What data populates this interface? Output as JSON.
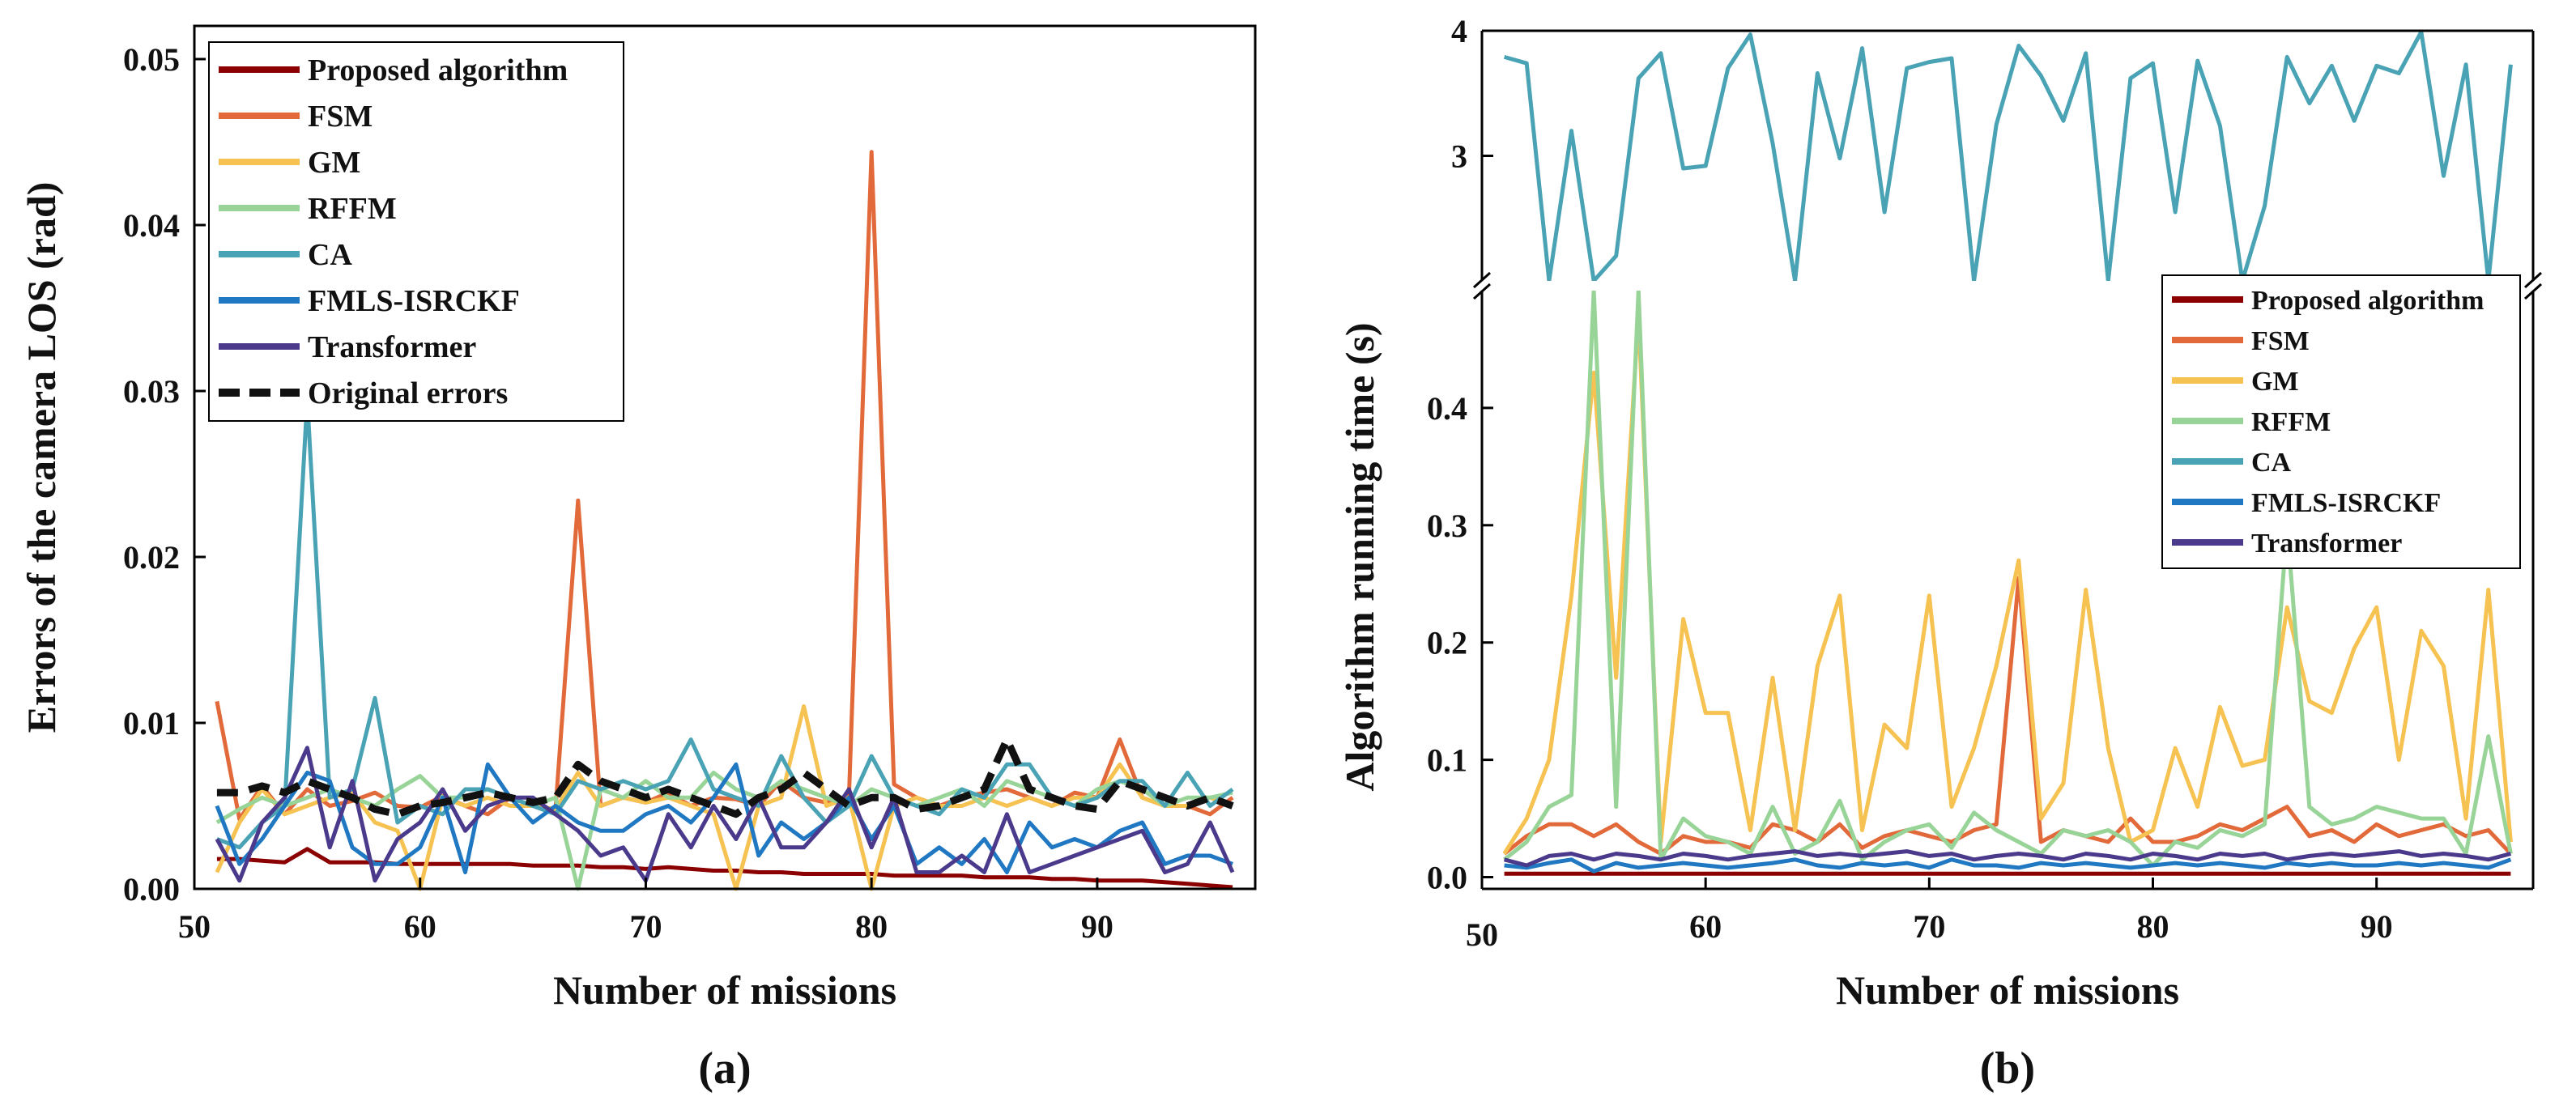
{
  "chart_data": [
    {
      "panel_label": "(a)",
      "type": "line",
      "xlabel": "Number of missions",
      "ylabel": "Errors of the camera LOS (rad)",
      "xlim": [
        50,
        97
      ],
      "ylim": [
        0,
        0.052
      ],
      "xticks": [
        50,
        60,
        70,
        80,
        90
      ],
      "yticks": [
        0.0,
        0.01,
        0.02,
        0.03,
        0.04,
        0.05
      ],
      "ytick_labels": [
        "0.00",
        "0.01",
        "0.02",
        "0.03",
        "0.04",
        "0.05"
      ],
      "x": [
        51,
        52,
        53,
        54,
        55,
        56,
        57,
        58,
        59,
        60,
        61,
        62,
        63,
        64,
        65,
        66,
        67,
        68,
        69,
        70,
        71,
        72,
        73,
        74,
        75,
        76,
        77,
        78,
        79,
        80,
        81,
        82,
        83,
        84,
        85,
        86,
        87,
        88,
        89,
        90,
        91,
        92,
        93,
        94,
        95,
        96
      ],
      "series": [
        {
          "name": "Proposed algorithm",
          "color": "#8b0000",
          "dash": false,
          "values": [
            0.0018,
            0.0018,
            0.0017,
            0.0016,
            0.0024,
            0.0016,
            0.0016,
            0.0016,
            0.0015,
            0.0015,
            0.0015,
            0.0015,
            0.0015,
            0.0015,
            0.0014,
            0.0014,
            0.0014,
            0.0013,
            0.0013,
            0.0012,
            0.0013,
            0.0012,
            0.0011,
            0.0011,
            0.001,
            0.001,
            0.0009,
            0.0009,
            0.0009,
            0.0009,
            0.0008,
            0.0008,
            0.0008,
            0.0008,
            0.0007,
            0.0007,
            0.0007,
            0.0006,
            0.0006,
            0.0005,
            0.0005,
            0.0005,
            0.0004,
            0.0003,
            0.0002,
            0.0001
          ]
        },
        {
          "name": "FSM",
          "color": "#e2693a",
          "dash": false,
          "values": [
            0.0113,
            0.0042,
            0.0062,
            0.0045,
            0.006,
            0.005,
            0.0053,
            0.0058,
            0.005,
            0.0049,
            0.0056,
            0.005,
            0.0045,
            0.0055,
            0.005,
            0.0048,
            0.0234,
            0.005,
            0.0055,
            0.0052,
            0.0058,
            0.005,
            0.0055,
            0.0054,
            0.005,
            0.0065,
            0.0055,
            0.0052,
            0.0055,
            0.0444,
            0.0063,
            0.0055,
            0.005,
            0.0055,
            0.0058,
            0.006,
            0.0055,
            0.005,
            0.0058,
            0.0055,
            0.009,
            0.0055,
            0.005,
            0.005,
            0.0045,
            0.0055
          ]
        },
        {
          "name": "GM",
          "color": "#f6c251",
          "dash": false,
          "values": [
            0.001,
            0.004,
            0.006,
            0.0045,
            0.005,
            0.0055,
            0.0058,
            0.004,
            0.0035,
            0.0,
            0.0055,
            0.005,
            0.0055,
            0.005,
            0.005,
            0.0048,
            0.007,
            0.005,
            0.0055,
            0.0052,
            0.0055,
            0.005,
            0.0045,
            0.0,
            0.005,
            0.0055,
            0.011,
            0.005,
            0.0055,
            0.0,
            0.005,
            0.0055,
            0.005,
            0.005,
            0.0055,
            0.005,
            0.0055,
            0.005,
            0.0055,
            0.0055,
            0.0075,
            0.0055,
            0.005,
            0.005,
            0.0055,
            0.005
          ]
        },
        {
          "name": "RFFM",
          "color": "#98d498",
          "dash": false,
          "values": [
            0.004,
            0.0048,
            0.0055,
            0.005,
            0.0055,
            0.006,
            0.0055,
            0.005,
            0.006,
            0.0068,
            0.0055,
            0.0055,
            0.006,
            0.0055,
            0.005,
            0.0055,
            0.0,
            0.006,
            0.0055,
            0.0065,
            0.0055,
            0.0055,
            0.007,
            0.006,
            0.0055,
            0.0065,
            0.006,
            0.0055,
            0.005,
            0.006,
            0.0055,
            0.005,
            0.0055,
            0.006,
            0.005,
            0.0065,
            0.006,
            0.0055,
            0.005,
            0.006,
            0.0065,
            0.006,
            0.005,
            0.0055,
            0.0055,
            0.0058
          ]
        },
        {
          "name": "CA",
          "color": "#4aa3b5",
          "dash": false,
          "values": [
            0.003,
            0.0025,
            0.004,
            0.005,
            0.0295,
            0.0055,
            0.006,
            0.0115,
            0.004,
            0.005,
            0.0045,
            0.006,
            0.006,
            0.0055,
            0.005,
            0.0045,
            0.0065,
            0.006,
            0.0065,
            0.006,
            0.0065,
            0.009,
            0.006,
            0.0055,
            0.005,
            0.008,
            0.0055,
            0.004,
            0.005,
            0.008,
            0.0055,
            0.005,
            0.0045,
            0.006,
            0.0055,
            0.0075,
            0.0075,
            0.0055,
            0.005,
            0.0055,
            0.0065,
            0.0065,
            0.005,
            0.007,
            0.005,
            0.006
          ]
        },
        {
          "name": "FMLS-ISRCKF",
          "color": "#1f78c1",
          "dash": false,
          "values": [
            0.005,
            0.0015,
            0.003,
            0.005,
            0.007,
            0.0065,
            0.0025,
            0.0015,
            0.0015,
            0.0025,
            0.0055,
            0.001,
            0.0075,
            0.0055,
            0.004,
            0.005,
            0.004,
            0.0035,
            0.0035,
            0.0045,
            0.005,
            0.004,
            0.0055,
            0.0075,
            0.002,
            0.004,
            0.003,
            0.004,
            0.0055,
            0.003,
            0.005,
            0.0015,
            0.0025,
            0.0015,
            0.003,
            0.001,
            0.004,
            0.0025,
            0.003,
            0.0025,
            0.0035,
            0.004,
            0.0015,
            0.002,
            0.002,
            0.0015
          ]
        },
        {
          "name": "Transformer",
          "color": "#4b3a8c",
          "dash": false,
          "values": [
            0.003,
            0.0005,
            0.004,
            0.0055,
            0.0085,
            0.0025,
            0.0065,
            0.0005,
            0.003,
            0.004,
            0.006,
            0.0035,
            0.005,
            0.0055,
            0.0055,
            0.0045,
            0.0035,
            0.002,
            0.0025,
            0.0005,
            0.0045,
            0.0025,
            0.005,
            0.003,
            0.0055,
            0.0025,
            0.0025,
            0.004,
            0.006,
            0.0025,
            0.0055,
            0.001,
            0.001,
            0.002,
            0.001,
            0.0045,
            0.001,
            0.0015,
            0.002,
            0.0025,
            0.003,
            0.0035,
            0.001,
            0.0015,
            0.004,
            0.001
          ]
        },
        {
          "name": "Original errors",
          "color": "#111111",
          "dash": true,
          "values": [
            0.0058,
            0.0058,
            0.0062,
            0.0058,
            0.0065,
            0.006,
            0.0055,
            0.0048,
            0.0045,
            0.005,
            0.0052,
            0.0055,
            0.0058,
            0.0055,
            0.0052,
            0.0055,
            0.0075,
            0.0065,
            0.006,
            0.0055,
            0.006,
            0.0055,
            0.005,
            0.0045,
            0.0055,
            0.006,
            0.007,
            0.006,
            0.005,
            0.0055,
            0.0055,
            0.0048,
            0.005,
            0.0055,
            0.006,
            0.009,
            0.006,
            0.0055,
            0.005,
            0.0048,
            0.0065,
            0.006,
            0.0055,
            0.005,
            0.0055,
            0.005
          ]
        }
      ]
    },
    {
      "panel_label": "(b)",
      "type": "line",
      "xlabel": "Number of missions",
      "ylabel": "Algorithm running time (s)",
      "xlim": [
        50,
        97
      ],
      "broken_axis": {
        "lower": [
          -0.01,
          0.5
        ],
        "upper": [
          2.0,
          4.0
        ]
      },
      "xticks": [
        50,
        60,
        70,
        80,
        90
      ],
      "yticks_lower": [
        0.0,
        0.1,
        0.2,
        0.3,
        0.4
      ],
      "ytick_labels_lower": [
        "0.0",
        "0.1",
        "0.2",
        "0.3",
        "0.4"
      ],
      "yticks_upper": [
        3,
        4
      ],
      "ytick_labels_upper": [
        "3",
        "4"
      ],
      "x": [
        51,
        52,
        53,
        54,
        55,
        56,
        57,
        58,
        59,
        60,
        61,
        62,
        63,
        64,
        65,
        66,
        67,
        68,
        69,
        70,
        71,
        72,
        73,
        74,
        75,
        76,
        77,
        78,
        79,
        80,
        81,
        82,
        83,
        84,
        85,
        86,
        87,
        88,
        89,
        90,
        91,
        92,
        93,
        94,
        95,
        96
      ],
      "series": [
        {
          "name": "Proposed algorithm",
          "color": "#8b0000",
          "values": [
            0.003,
            0.003,
            0.003,
            0.003,
            0.003,
            0.003,
            0.003,
            0.003,
            0.003,
            0.003,
            0.003,
            0.003,
            0.003,
            0.003,
            0.003,
            0.003,
            0.003,
            0.003,
            0.003,
            0.003,
            0.003,
            0.003,
            0.003,
            0.003,
            0.003,
            0.003,
            0.003,
            0.003,
            0.003,
            0.003,
            0.003,
            0.003,
            0.003,
            0.003,
            0.003,
            0.003,
            0.003,
            0.003,
            0.003,
            0.003,
            0.003,
            0.003,
            0.003,
            0.003,
            0.003,
            0.003
          ]
        },
        {
          "name": "FSM",
          "color": "#e2693a",
          "values": [
            0.02,
            0.035,
            0.045,
            0.045,
            0.035,
            0.045,
            0.03,
            0.02,
            0.035,
            0.03,
            0.03,
            0.025,
            0.045,
            0.04,
            0.03,
            0.045,
            0.025,
            0.035,
            0.04,
            0.035,
            0.03,
            0.04,
            0.045,
            0.255,
            0.03,
            0.04,
            0.035,
            0.03,
            0.05,
            0.03,
            0.03,
            0.035,
            0.045,
            0.04,
            0.05,
            0.06,
            0.035,
            0.04,
            0.03,
            0.045,
            0.035,
            0.04,
            0.045,
            0.035,
            0.04,
            0.02
          ]
        },
        {
          "name": "GM",
          "color": "#f6c251",
          "values": [
            0.02,
            0.05,
            0.1,
            0.24,
            0.43,
            0.17,
            0.48,
            0.03,
            0.22,
            0.14,
            0.14,
            0.04,
            0.17,
            0.04,
            0.18,
            0.24,
            0.04,
            0.13,
            0.11,
            0.24,
            0.06,
            0.11,
            0.18,
            0.27,
            0.05,
            0.08,
            0.245,
            0.11,
            0.03,
            0.04,
            0.11,
            0.06,
            0.145,
            0.095,
            0.1,
            0.23,
            0.15,
            0.14,
            0.195,
            0.23,
            0.1,
            0.21,
            0.18,
            0.05,
            0.245,
            0.03
          ]
        },
        {
          "name": "RFFM",
          "color": "#98d498",
          "values": [
            0.015,
            0.03,
            0.06,
            0.07,
            0.5,
            0.06,
            0.5,
            0.015,
            0.05,
            0.035,
            0.03,
            0.02,
            0.06,
            0.02,
            0.03,
            0.065,
            0.015,
            0.03,
            0.04,
            0.045,
            0.025,
            0.055,
            0.04,
            0.03,
            0.02,
            0.04,
            0.035,
            0.04,
            0.03,
            0.01,
            0.03,
            0.025,
            0.04,
            0.035,
            0.045,
            0.3,
            0.06,
            0.045,
            0.05,
            0.06,
            0.055,
            0.05,
            0.05,
            0.02,
            0.12,
            0.02
          ]
        },
        {
          "name": "CA",
          "color": "#4aa3b5",
          "values": [
            3.79,
            3.74,
            2.0,
            3.2,
            2.0,
            2.2,
            3.62,
            3.82,
            2.9,
            2.92,
            3.7,
            3.97,
            3.1,
            2.0,
            3.66,
            2.98,
            3.86,
            2.55,
            3.7,
            3.75,
            3.78,
            2.0,
            3.25,
            3.88,
            3.64,
            3.28,
            3.82,
            2.0,
            3.62,
            3.74,
            2.55,
            3.76,
            3.24,
            2.0,
            2.6,
            3.79,
            3.42,
            3.72,
            3.28,
            3.72,
            3.66,
            3.99,
            2.84,
            3.73,
            2.0,
            3.73
          ]
        },
        {
          "name": "FMLS-ISRCKF",
          "color": "#1f78c1",
          "values": [
            0.01,
            0.008,
            0.012,
            0.015,
            0.005,
            0.012,
            0.008,
            0.01,
            0.012,
            0.01,
            0.008,
            0.01,
            0.012,
            0.015,
            0.01,
            0.008,
            0.012,
            0.01,
            0.012,
            0.008,
            0.015,
            0.01,
            0.01,
            0.008,
            0.012,
            0.01,
            0.012,
            0.01,
            0.008,
            0.01,
            0.012,
            0.01,
            0.012,
            0.01,
            0.008,
            0.012,
            0.01,
            0.012,
            0.01,
            0.01,
            0.012,
            0.01,
            0.012,
            0.01,
            0.008,
            0.015
          ]
        },
        {
          "name": "Transformer",
          "color": "#4b3a8c",
          "values": [
            0.015,
            0.01,
            0.018,
            0.02,
            0.015,
            0.02,
            0.018,
            0.015,
            0.02,
            0.018,
            0.015,
            0.018,
            0.02,
            0.022,
            0.018,
            0.02,
            0.018,
            0.02,
            0.022,
            0.018,
            0.02,
            0.015,
            0.018,
            0.02,
            0.018,
            0.015,
            0.02,
            0.018,
            0.015,
            0.02,
            0.018,
            0.015,
            0.02,
            0.018,
            0.02,
            0.015,
            0.018,
            0.02,
            0.018,
            0.02,
            0.022,
            0.018,
            0.02,
            0.018,
            0.015,
            0.02
          ]
        }
      ]
    }
  ]
}
